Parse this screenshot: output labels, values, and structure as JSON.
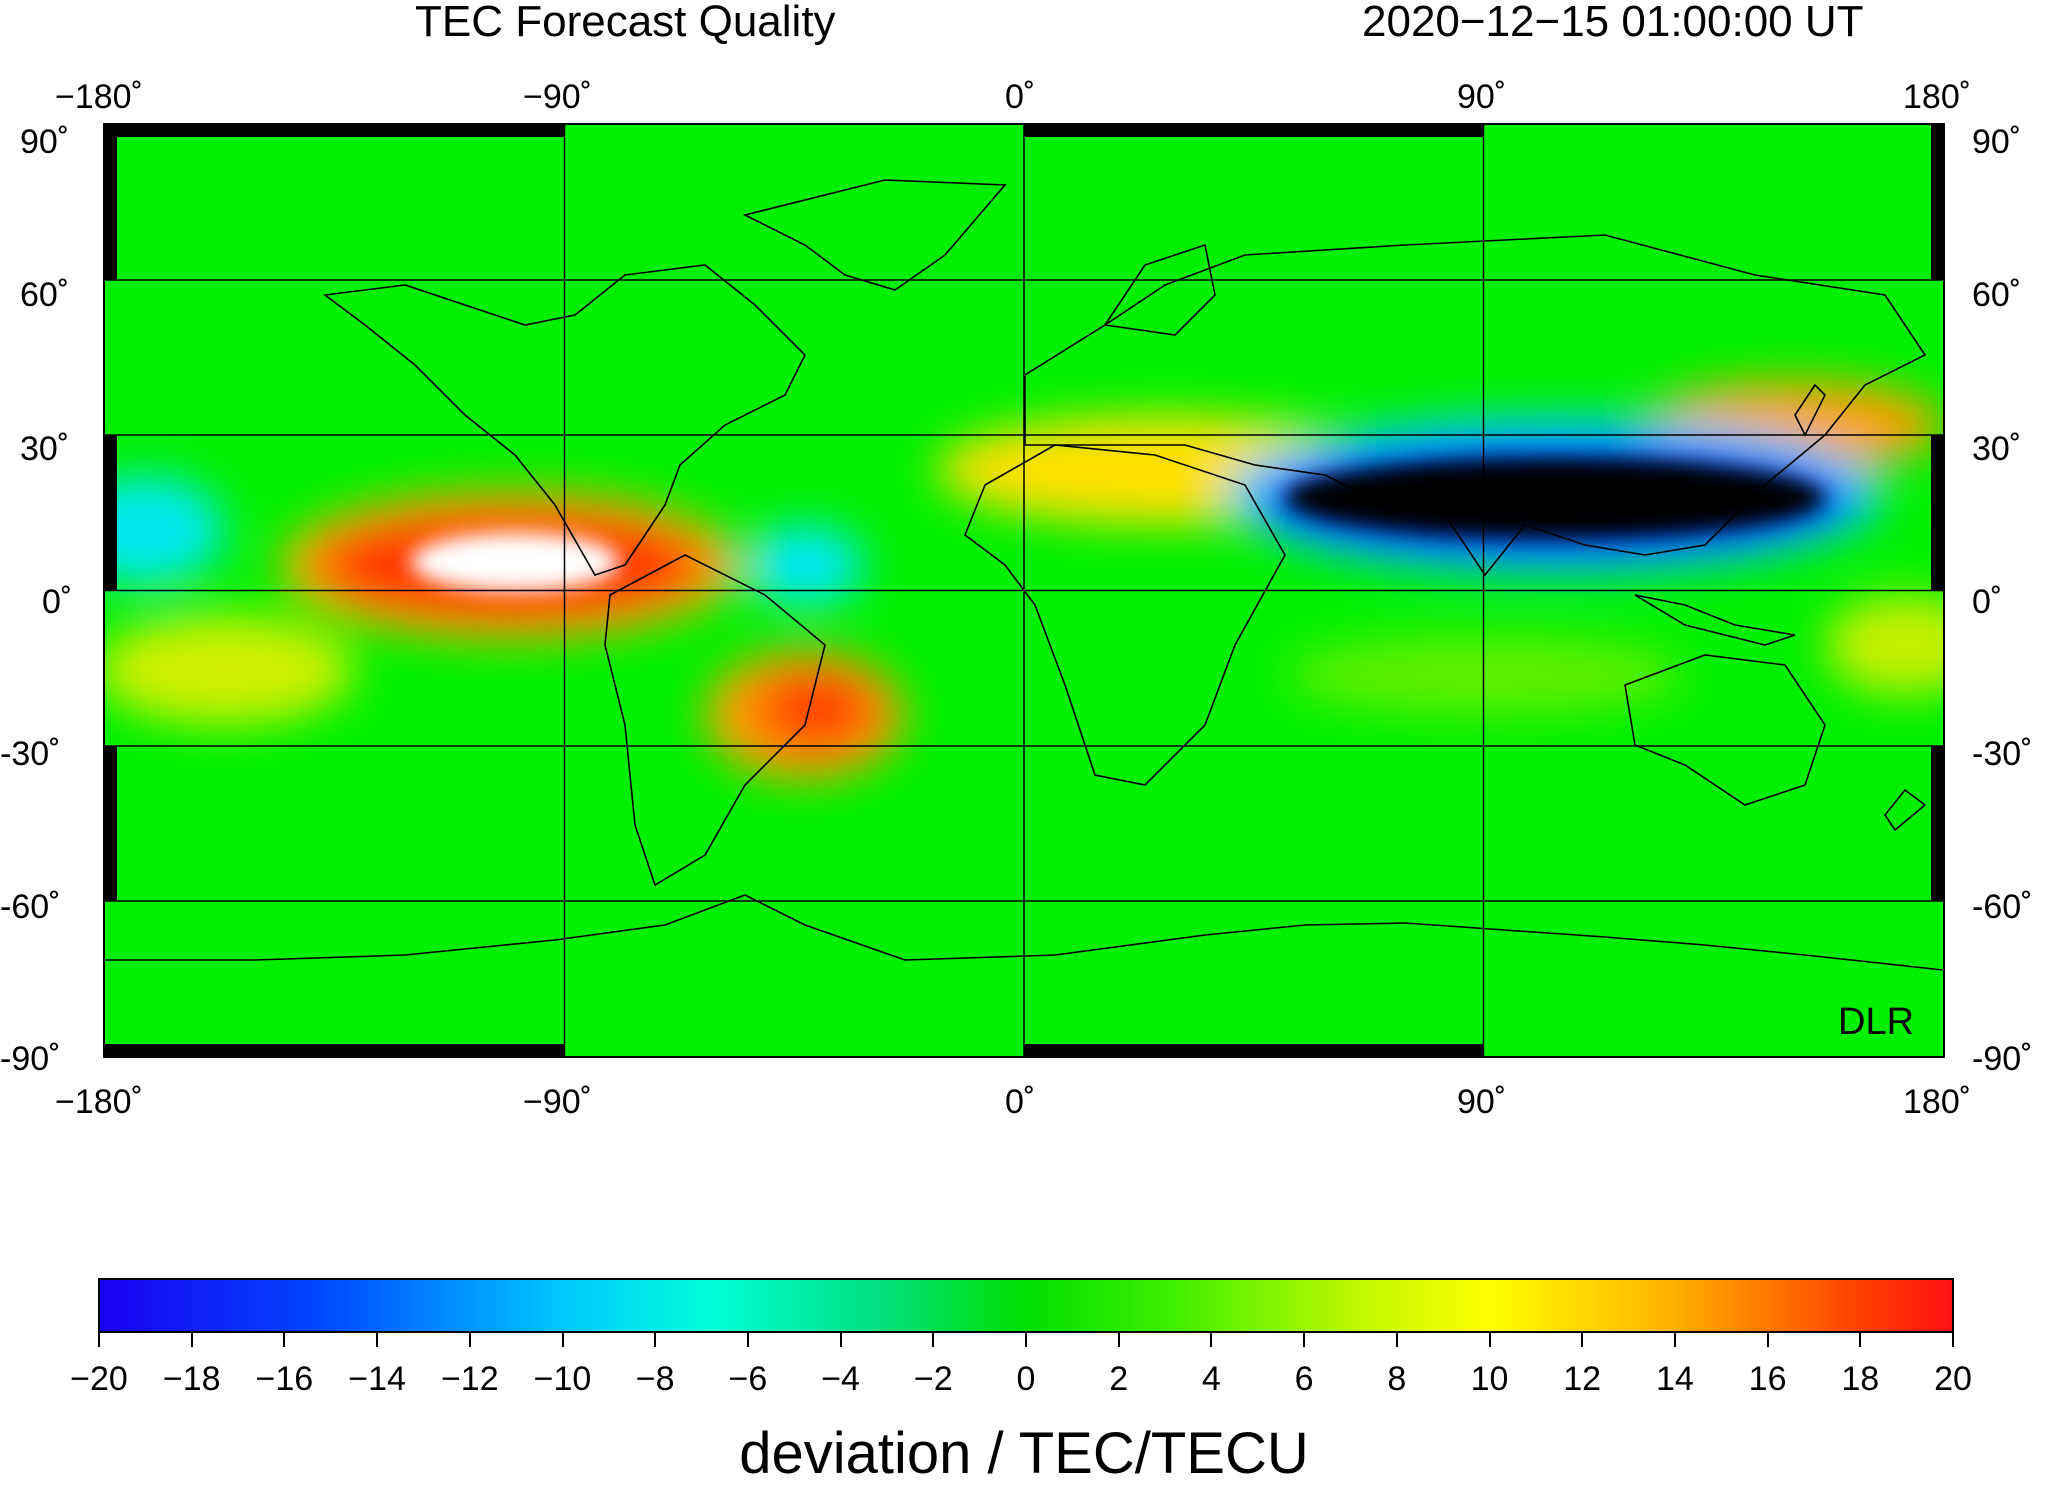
{
  "title": "TEC Forecast Quality",
  "timestamp": "2020−12−15  01:00:00 UT",
  "credit": "DLR",
  "colorbar": {
    "label": "deviation / TEC/TECU",
    "ticks": [
      "−20",
      "−18",
      "−16",
      "−14",
      "−12",
      "−10",
      "−8",
      "−6",
      "−4",
      "−2",
      "0",
      "2",
      "4",
      "6",
      "8",
      "10",
      "12",
      "14",
      "16",
      "18",
      "20"
    ],
    "range": [
      -20,
      20
    ],
    "colors": [
      "#1a00f0",
      "#0048ff",
      "#00c8ff",
      "#00ffd8",
      "#00e080",
      "#00e000",
      "#40f000",
      "#c0f800",
      "#ffff00",
      "#ffb000",
      "#ff4000",
      "#ff1010"
    ]
  },
  "map": {
    "projection": "equirectangular",
    "lon_range": [
      -180,
      180
    ],
    "lat_range": [
      -90,
      90
    ],
    "lon_ticks": [
      "−180˚",
      "−90˚",
      "0˚",
      "90˚",
      "180˚"
    ],
    "lat_ticks": [
      "90˚",
      "60˚",
      "30˚",
      "0˚",
      "-30˚",
      "-60˚",
      "-90˚"
    ],
    "background_color": "#00f000",
    "anomalies": [
      {
        "name": "east-pacific-positive",
        "lon": -120,
        "lat": 3,
        "value": 22
      },
      {
        "name": "south-atlantic-positive",
        "lon": -42,
        "lat": -23,
        "value": 17
      },
      {
        "name": "north-africa-positive",
        "lon": 30,
        "lat": 25,
        "value": 10
      },
      {
        "name": "japan-positive",
        "lon": 150,
        "lat": 35,
        "value": 13
      },
      {
        "name": "asia-negative",
        "lon": 120,
        "lat": 20,
        "value": -24
      },
      {
        "name": "central-pacific-negative",
        "lon": -175,
        "lat": 15,
        "value": -10
      },
      {
        "name": "amazon-negative",
        "lon": -45,
        "lat": 3,
        "value": -9
      },
      {
        "name": "south-pacific-positive",
        "lon": -165,
        "lat": -15,
        "value": 8
      },
      {
        "name": "pacific-dateline-positive",
        "lon": 170,
        "lat": -12,
        "value": 8
      }
    ]
  }
}
